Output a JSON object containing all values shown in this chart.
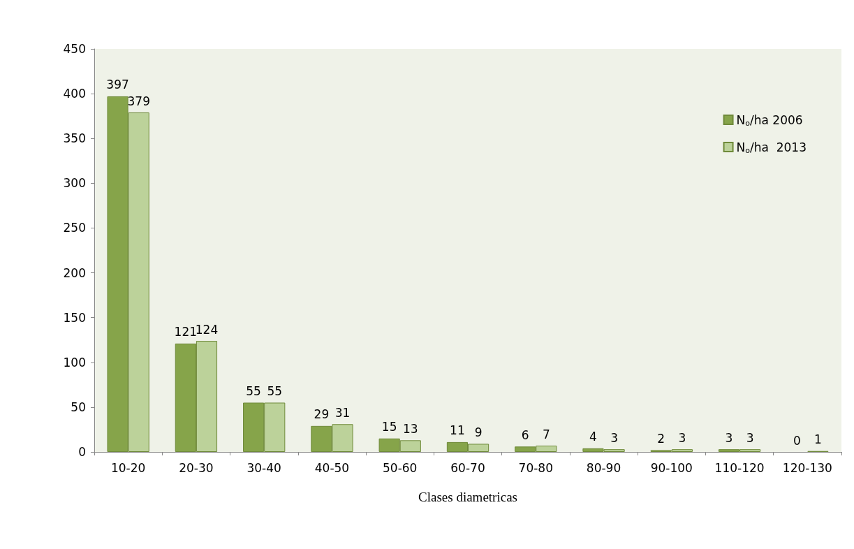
{
  "chart_data": {
    "type": "bar",
    "xlabel": "Clases diametricas",
    "categories": [
      "10-20",
      "20-30",
      "30-40",
      "40-50",
      "50-60",
      "60-70",
      "70-80",
      "80-90",
      "90-100",
      "110-120",
      "120-130"
    ],
    "series": [
      {
        "name": "N$_{o}$/ha 2006",
        "color": "#86a44a",
        "values": [
          397,
          121,
          55,
          29,
          15,
          11,
          6,
          4,
          2,
          3,
          0
        ]
      },
      {
        "name": "N$_{o}$/ha  2013",
        "color": "#bcd29a",
        "values": [
          379,
          124,
          55,
          31,
          13,
          9,
          7,
          3,
          3,
          3,
          1
        ]
      }
    ],
    "ylim": [
      0,
      450
    ],
    "yticks": [
      0,
      50,
      100,
      150,
      200,
      250,
      300,
      350,
      400,
      450
    ],
    "grid": false,
    "legend": "top right",
    "data_labels": true
  }
}
